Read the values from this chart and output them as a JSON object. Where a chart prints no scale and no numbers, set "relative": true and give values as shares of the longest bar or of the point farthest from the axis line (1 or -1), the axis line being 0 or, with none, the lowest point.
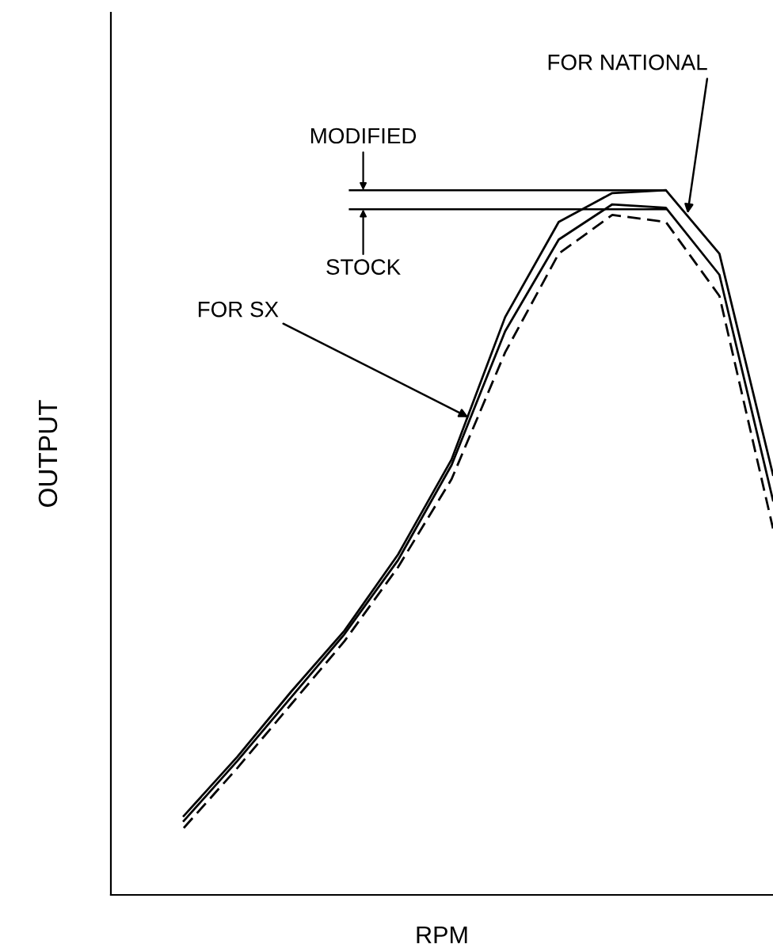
{
  "chart_data": {
    "type": "line",
    "relative": true,
    "xlabel": "RPM",
    "ylabel": "OUTPUT",
    "categories": [
      null,
      null,
      null,
      null,
      null,
      null,
      null,
      null,
      null,
      null,
      null,
      null
    ],
    "series": [
      {
        "color": "#000000",
        "line_style": "solid",
        "values": [
          0.112,
          0.196,
          0.288,
          0.375,
          0.483,
          0.618,
          0.82,
          0.955,
          0.996,
          1.0,
          0.91,
          0.596
        ]
      },
      {
        "color": "#000000",
        "line_style": "solid",
        "values": [
          0.105,
          0.19,
          0.28,
          0.37,
          0.475,
          0.61,
          0.8,
          0.93,
          0.98,
          0.975,
          0.88,
          0.56
        ]
      },
      {
        "color": "#000000",
        "line_style": "dashed",
        "values": [
          0.095,
          0.18,
          0.27,
          0.36,
          0.465,
          0.59,
          0.77,
          0.91,
          0.965,
          0.955,
          0.85,
          0.52
        ]
      }
    ],
    "ref_lines": [
      {
        "axis": "y",
        "value": 1.0,
        "label": "MODIFIED"
      },
      {
        "axis": "y",
        "value": 0.973,
        "label": "STOCK"
      }
    ],
    "annotations": [
      "FOR NATIONAL",
      "FOR SX"
    ],
    "marker": "none",
    "tick_labels": false
  }
}
